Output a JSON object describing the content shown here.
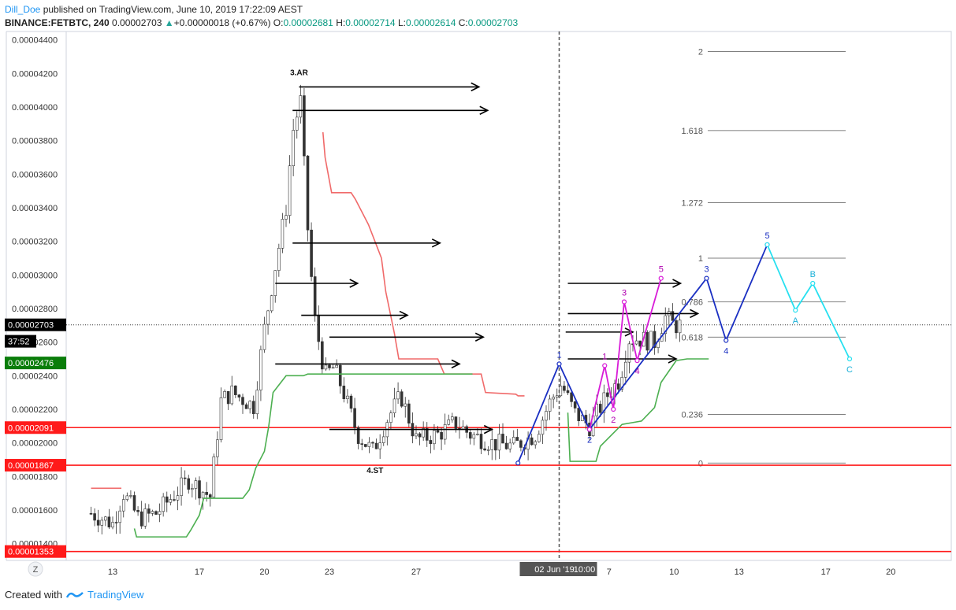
{
  "header": {
    "author": "Dill_Doe",
    "published": " published on TradingView.com, June 10, 2019 17:22:09 AEST",
    "symbol": "BINANCE:FETBTC, 240",
    "price": "0.00002703",
    "change_arrow": "▲",
    "change": "+0.00000018 (+0.67%)",
    "o_label": "O:",
    "o_value": "0.00002681",
    "h_label": "H:",
    "h_value": "0.00002714",
    "l_label": "L:",
    "l_value": "0.00002614",
    "c_label": "C:",
    "c_value": "0.00002703"
  },
  "footer": {
    "created_with": "Created with",
    "brand": "TradingView"
  },
  "chart_data": {
    "type": "candlestick",
    "ylim": [
      1.3e-05,
      4.45e-05
    ],
    "y_ticks": [
      "0.00004400",
      "0.00004200",
      "0.00004000",
      "0.00003800",
      "0.00003600",
      "0.00003400",
      "0.00003200",
      "0.00003000",
      "0.00002800",
      "0.00002600",
      "0.00002400",
      "0.00002200",
      "0.00002000",
      "0.00001800",
      "0.00001600",
      "0.00001400"
    ],
    "x_ticks": [
      "13",
      "17",
      "20",
      "23",
      "27",
      "7",
      "10",
      "13",
      "17",
      "20"
    ],
    "x_highlight": "02 Jun '19",
    "x_highlight_time": "10:00",
    "price_labels": [
      {
        "text": "0.00002703",
        "value": 2.703e-05,
        "color": "#000000"
      },
      {
        "text": "37:52",
        "value": 2.605e-05,
        "color": "#000000"
      },
      {
        "text": "0.00002476",
        "value": 2.476e-05,
        "color": "#0a7d0a"
      },
      {
        "text": "0.00002091",
        "value": 2.091e-05,
        "color": "#ff1a1a"
      },
      {
        "text": "0.00001867",
        "value": 1.867e-05,
        "color": "#ff1a1a"
      },
      {
        "text": "0.00001353",
        "value": 1.353e-05,
        "color": "#ff1a1a"
      }
    ],
    "horizontal_red_lines": [
      2.091e-05,
      1.867e-05,
      1.353e-05
    ],
    "fib_levels": [
      {
        "label": "2",
        "value": 4.33e-05
      },
      {
        "label": "1.618",
        "value": 3.86e-05
      },
      {
        "label": "1.272",
        "value": 3.43e-05
      },
      {
        "label": "1",
        "value": 3.1e-05
      },
      {
        "label": "0.786",
        "value": 2.84e-05
      },
      {
        "label": "0.618",
        "value": 2.63e-05
      },
      {
        "label": "0.236",
        "value": 2.17e-05
      },
      {
        "label": "0",
        "value": 1.88e-05
      }
    ],
    "annotations": [
      {
        "text": "3.AR",
        "x": 21.6,
        "y": 4.19e-05
      },
      {
        "text": "4.ST",
        "x": 25.1,
        "y": 1.82e-05
      }
    ],
    "wave_blue": [
      {
        "x": 31.7,
        "y": 1.88e-05,
        "label": ""
      },
      {
        "x": 33.6,
        "y": 2.47e-05,
        "label": "1"
      },
      {
        "x": 35.0,
        "y": 2.08e-05,
        "label": "2"
      },
      {
        "x": 40.4,
        "y": 2.98e-05,
        "label": "3"
      },
      {
        "x": 41.3,
        "y": 2.61e-05,
        "label": "4"
      },
      {
        "x": 43.2,
        "y": 3.18e-05,
        "label": "5"
      }
    ],
    "wave_magenta": [
      {
        "x": 35.0,
        "y": 2.08e-05,
        "label": ""
      },
      {
        "x": 35.7,
        "y": 2.46e-05,
        "label": "1"
      },
      {
        "x": 36.1,
        "y": 2.2e-05,
        "label": "2"
      },
      {
        "x": 36.6,
        "y": 2.84e-05,
        "label": "3"
      },
      {
        "x": 37.2,
        "y": 2.49e-05,
        "label": "4"
      },
      {
        "x": 38.3,
        "y": 2.98e-05,
        "label": "5"
      }
    ],
    "wave_cyan": [
      {
        "x": 43.2,
        "y": 3.18e-05,
        "label": ""
      },
      {
        "x": 44.5,
        "y": 2.79e-05,
        "label": "A"
      },
      {
        "x": 45.3,
        "y": 2.95e-05,
        "label": "B"
      },
      {
        "x": 47.0,
        "y": 2.5e-05,
        "label": "C"
      }
    ],
    "arrows": [
      {
        "x1": 21.6,
        "x2": 29.9,
        "y": 4.12e-05
      },
      {
        "x1": 21.3,
        "x2": 30.3,
        "y": 3.98e-05
      },
      {
        "x1": 21.3,
        "x2": 28.1,
        "y": 3.19e-05
      },
      {
        "x1": 20.5,
        "x2": 24.3,
        "y": 2.95e-05
      },
      {
        "x1": 21.7,
        "x2": 26.6,
        "y": 2.76e-05
      },
      {
        "x1": 23.0,
        "x2": 30.1,
        "y": 2.63e-05
      },
      {
        "x1": 20.5,
        "x2": 29.0,
        "y": 2.47e-05
      },
      {
        "x1": 23.0,
        "x2": 30.5,
        "y": 2.08e-05
      },
      {
        "x1": 33.9,
        "x2": 37.0,
        "y": 2.66e-05
      },
      {
        "x1": 34.0,
        "x2": 40.0,
        "y": 2.77e-05
      },
      {
        "x1": 34.0,
        "x2": 39.2,
        "y": 2.95e-05
      },
      {
        "x1": 34.0,
        "x2": 39.0,
        "y": 2.5e-05
      }
    ],
    "resistance_line": [
      [
        22.7,
        3.85e-05
      ],
      [
        22.8,
        3.7e-05
      ],
      [
        23.1,
        3.49e-05
      ],
      [
        24.0,
        3.49e-05
      ],
      [
        24.2,
        3.45e-05
      ],
      [
        24.8,
        3.3e-05
      ],
      [
        25.4,
        3.1e-05
      ],
      [
        25.6,
        2.9e-05
      ],
      [
        26.0,
        2.65e-05
      ],
      [
        26.2,
        2.5e-05
      ],
      [
        28.0,
        2.5e-05
      ],
      [
        28.3,
        2.41e-05
      ],
      [
        30.0,
        2.41e-05
      ],
      [
        30.2,
        2.3e-05
      ],
      [
        31.6,
        2.29e-05
      ],
      [
        31.7,
        2.28e-05
      ],
      [
        32.0,
        2.28e-05
      ]
    ],
    "support_line": [
      [
        14.0,
        1.49e-05
      ],
      [
        14.1,
        1.44e-05
      ],
      [
        16.4,
        1.44e-05
      ],
      [
        16.6,
        1.48e-05
      ],
      [
        17.0,
        1.57e-05
      ],
      [
        17.2,
        1.67e-05
      ],
      [
        19.0,
        1.67e-05
      ],
      [
        19.3,
        1.72e-05
      ],
      [
        19.6,
        1.85e-05
      ],
      [
        20.0,
        1.95e-05
      ],
      [
        20.2,
        2.1e-05
      ],
      [
        20.4,
        2.3e-05
      ],
      [
        21.0,
        2.4e-05
      ],
      [
        21.8,
        2.4e-05
      ],
      [
        22.0,
        2.41e-05
      ],
      [
        29.6,
        2.41e-05
      ]
    ],
    "support_line_recent": [
      [
        34.0,
        2.18e-05
      ],
      [
        34.1,
        1.89e-05
      ],
      [
        35.3,
        1.89e-05
      ],
      [
        35.5,
        1.98e-05
      ],
      [
        36.5,
        2.11e-05
      ],
      [
        37.4,
        2.13e-05
      ],
      [
        38.0,
        2.21e-05
      ],
      [
        38.3,
        2.36e-05
      ],
      [
        39.0,
        2.49e-05
      ],
      [
        39.5,
        2.5e-05
      ],
      [
        40.5,
        2.5e-05
      ]
    ],
    "prior_red_line": [
      [
        12.0,
        1.73e-05
      ],
      [
        13.4,
        1.73e-05
      ]
    ],
    "dashed_line_x": 33.6
  }
}
